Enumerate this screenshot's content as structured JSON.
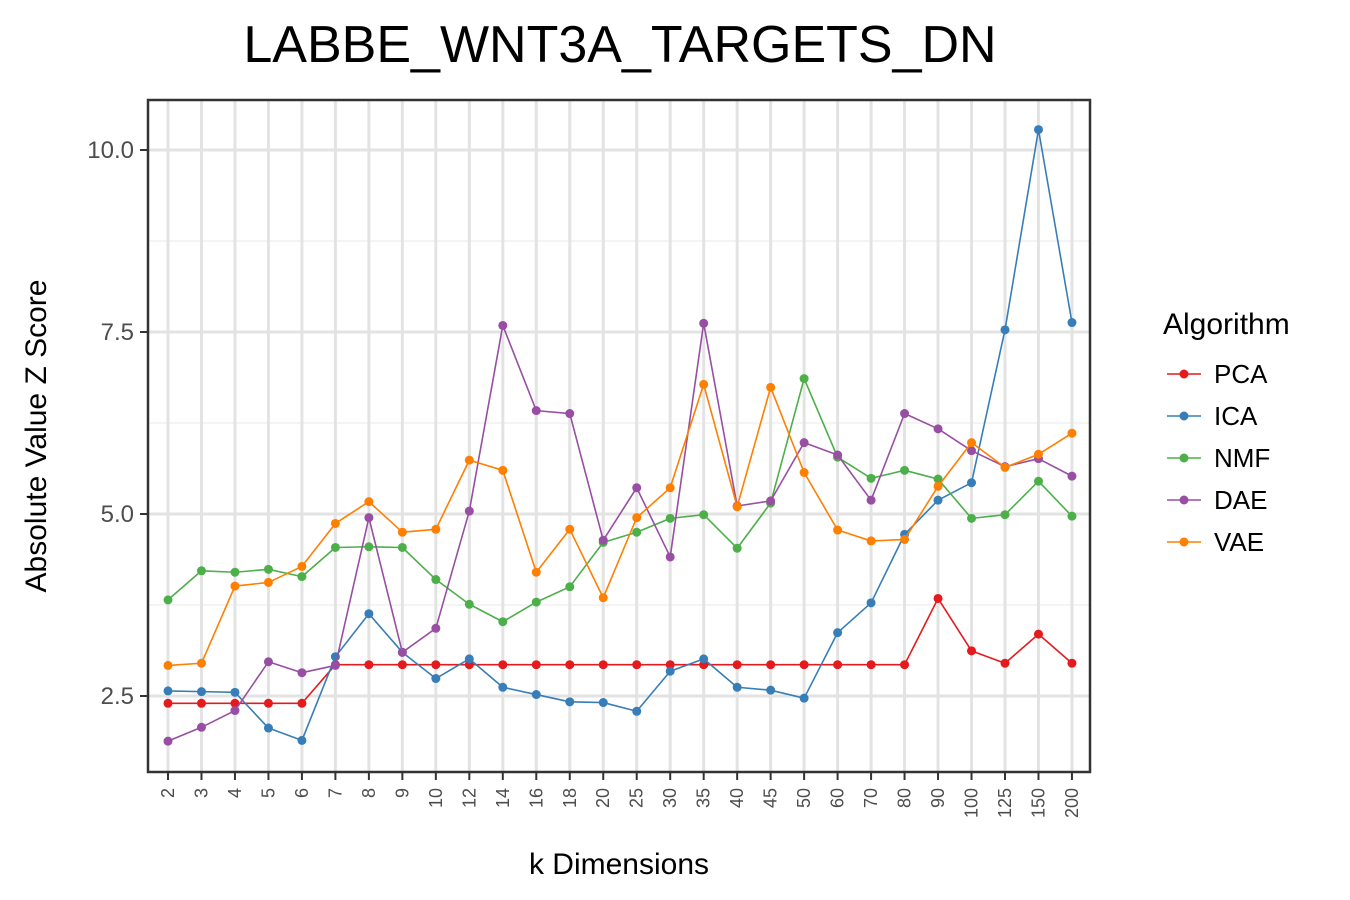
{
  "chart_data": {
    "type": "line",
    "title": "LABBE_WNT3A_TARGETS_DN",
    "xlabel": "k Dimensions",
    "ylabel": "Absolute Value Z Score",
    "categories": [
      "2",
      "3",
      "4",
      "5",
      "6",
      "7",
      "8",
      "9",
      "10",
      "12",
      "14",
      "16",
      "18",
      "20",
      "25",
      "30",
      "35",
      "40",
      "45",
      "50",
      "60",
      "70",
      "80",
      "90",
      "100",
      "125",
      "150",
      "200"
    ],
    "ylim": [
      1.6,
      10.7
    ],
    "yticks": [
      2.5,
      5.0,
      7.5,
      10.0
    ],
    "ytick_labels": [
      "2.5",
      "5.0",
      "7.5",
      "10.0"
    ],
    "grid": true,
    "legend": {
      "title": "Algorithm",
      "position": "right"
    },
    "series": [
      {
        "name": "PCA",
        "color": "#e41a1c",
        "values": [
          2.4,
          2.4,
          2.4,
          2.4,
          2.4,
          2.93,
          2.93,
          2.93,
          2.93,
          2.93,
          2.93,
          2.93,
          2.93,
          2.93,
          2.93,
          2.93,
          2.93,
          2.93,
          2.93,
          2.93,
          2.93,
          2.93,
          2.93,
          3.84,
          3.12,
          2.95,
          3.35,
          2.95
        ]
      },
      {
        "name": "ICA",
        "color": "#377eb8",
        "values": [
          2.57,
          2.56,
          2.55,
          2.06,
          1.89,
          3.04,
          3.63,
          3.1,
          2.74,
          3.01,
          2.62,
          2.52,
          2.42,
          2.41,
          2.29,
          2.84,
          3.01,
          2.62,
          2.58,
          2.47,
          3.37,
          3.78,
          4.72,
          5.19,
          5.43,
          7.53,
          10.28,
          7.63
        ]
      },
      {
        "name": "NMF",
        "color": "#4daf4a",
        "values": [
          3.82,
          4.22,
          4.2,
          4.24,
          4.14,
          4.54,
          4.55,
          4.54,
          4.1,
          3.76,
          3.52,
          3.79,
          4.0,
          4.61,
          4.75,
          4.94,
          4.99,
          4.53,
          5.15,
          6.86,
          5.78,
          5.49,
          5.6,
          5.48,
          4.94,
          4.99,
          5.45,
          4.97
        ]
      },
      {
        "name": "DAE",
        "color": "#984ea3",
        "values": [
          1.88,
          2.07,
          2.3,
          2.97,
          2.82,
          2.92,
          4.95,
          3.1,
          3.43,
          5.04,
          7.59,
          6.42,
          6.38,
          4.64,
          5.36,
          4.41,
          7.62,
          5.11,
          5.18,
          5.98,
          5.81,
          5.19,
          6.38,
          6.17,
          5.87,
          5.65,
          5.76,
          5.52
        ]
      },
      {
        "name": "VAE",
        "color": "#ff7f00",
        "values": [
          2.92,
          2.95,
          4.01,
          4.06,
          4.28,
          4.87,
          5.17,
          4.75,
          4.79,
          5.74,
          5.6,
          4.2,
          4.79,
          3.85,
          4.95,
          5.36,
          6.78,
          5.1,
          6.74,
          5.57,
          4.78,
          4.63,
          4.65,
          5.38,
          5.98,
          5.64,
          5.82,
          6.11
        ]
      }
    ]
  }
}
